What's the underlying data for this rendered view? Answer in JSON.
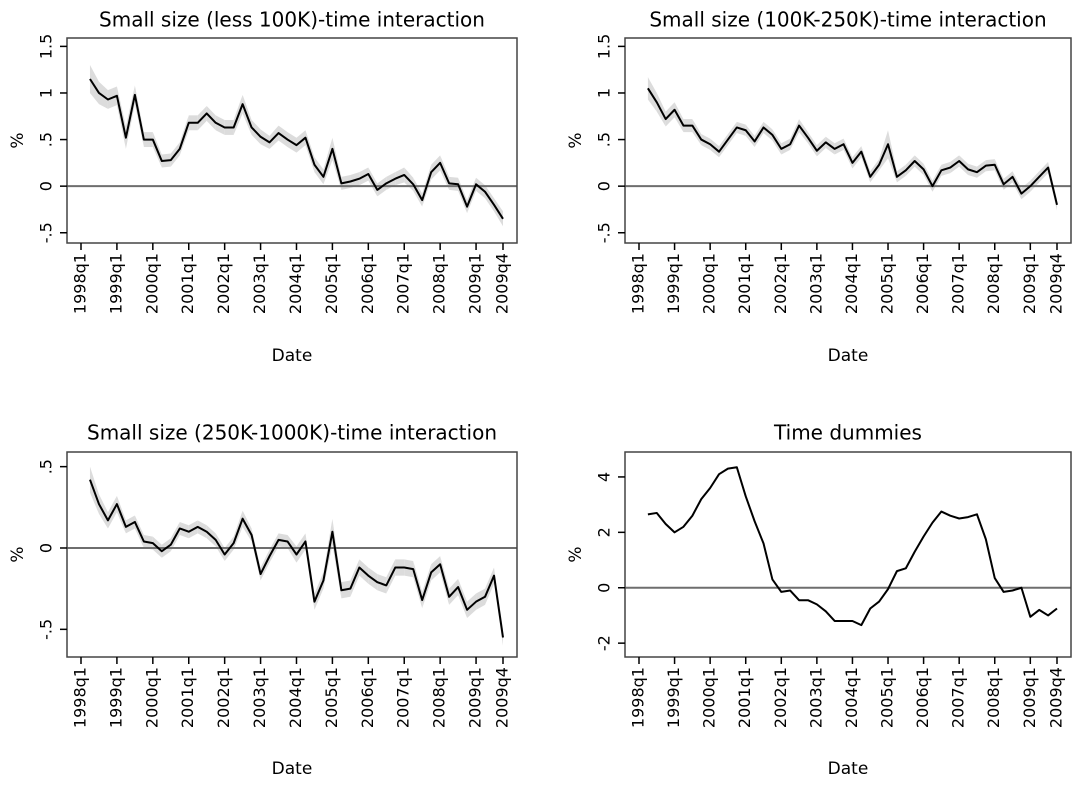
{
  "chart_data": [
    {
      "type": "line",
      "title": "Small size (less 100K)-time interaction",
      "xlabel": "Date",
      "ylabel": "%",
      "categories": [
        "1998q1",
        null,
        null,
        null,
        "1999q1",
        null,
        null,
        null,
        "2000q1",
        null,
        null,
        null,
        "2001q1",
        null,
        null,
        null,
        "2002q1",
        null,
        null,
        null,
        "2003q1",
        null,
        null,
        null,
        "2004q1",
        null,
        null,
        null,
        "2005q1",
        null,
        null,
        null,
        "2006q1",
        null,
        null,
        null,
        "2007q1",
        null,
        null,
        null,
        "2008q1",
        null,
        null,
        null,
        "2009q1",
        null,
        null,
        "2009q4"
      ],
      "series": [
        {
          "color": "#000000",
          "band_color": "#dcdcdc",
          "values": [
            null,
            1.15,
            1.0,
            0.93,
            0.97,
            0.52,
            0.98,
            0.5,
            0.5,
            0.27,
            0.28,
            0.4,
            0.68,
            0.68,
            0.78,
            0.68,
            0.63,
            0.63,
            0.88,
            0.63,
            0.53,
            0.47,
            0.57,
            0.5,
            0.44,
            0.52,
            0.23,
            0.1,
            0.4,
            0.03,
            0.05,
            0.08,
            0.13,
            -0.04,
            0.03,
            0.08,
            0.12,
            0.02,
            -0.15,
            0.15,
            0.25,
            0.03,
            0.02,
            -0.22,
            0.02,
            -0.06,
            -0.2,
            -0.35
          ],
          "errors": [
            null,
            0.15,
            0.12,
            0.1,
            0.1,
            0.12,
            0.1,
            0.08,
            0.08,
            0.07,
            0.07,
            0.07,
            0.08,
            0.08,
            0.08,
            0.08,
            0.08,
            0.08,
            0.1,
            0.08,
            0.08,
            0.07,
            0.08,
            0.08,
            0.08,
            0.08,
            0.08,
            0.08,
            0.12,
            0.07,
            0.07,
            0.07,
            0.07,
            0.07,
            0.07,
            0.07,
            0.08,
            0.07,
            0.07,
            0.08,
            0.08,
            0.07,
            0.07,
            0.07,
            0.07,
            0.07,
            0.07,
            0.08
          ]
        }
      ],
      "ylim": [
        -0.61,
        1.59
      ],
      "yticks": [
        {
          "value": -0.5,
          "label": "-.5"
        },
        0,
        {
          "value": 0.5,
          "label": ".5"
        },
        1,
        {
          "value": 1.5,
          "label": "1.5"
        }
      ],
      "zero_line": true
    },
    {
      "type": "line",
      "title": "Small size (100K-250K)-time interaction",
      "xlabel": "Date",
      "ylabel": "%",
      "categories": [
        "1998q1",
        null,
        null,
        null,
        "1999q1",
        null,
        null,
        null,
        "2000q1",
        null,
        null,
        null,
        "2001q1",
        null,
        null,
        null,
        "2002q1",
        null,
        null,
        null,
        "2003q1",
        null,
        null,
        null,
        "2004q1",
        null,
        null,
        null,
        "2005q1",
        null,
        null,
        null,
        "2006q1",
        null,
        null,
        null,
        "2007q1",
        null,
        null,
        null,
        "2008q1",
        null,
        null,
        null,
        "2009q1",
        null,
        null,
        "2009q4"
      ],
      "series": [
        {
          "color": "#000000",
          "band_color": "#dcdcdc",
          "values": [
            null,
            1.05,
            0.9,
            0.72,
            0.82,
            0.65,
            0.65,
            0.5,
            0.45,
            0.37,
            0.5,
            0.63,
            0.6,
            0.48,
            0.63,
            0.55,
            0.4,
            0.45,
            0.65,
            0.52,
            0.38,
            0.47,
            0.4,
            0.45,
            0.25,
            0.37,
            0.1,
            0.23,
            0.45,
            0.1,
            0.17,
            0.27,
            0.18,
            0.0,
            0.17,
            0.2,
            0.27,
            0.18,
            0.15,
            0.22,
            0.23,
            0.02,
            0.1,
            -0.08,
            0.0,
            0.1,
            0.2,
            -0.2
          ],
          "errors": [
            null,
            0.12,
            0.1,
            0.08,
            0.08,
            0.07,
            0.07,
            0.06,
            0.06,
            0.06,
            0.06,
            0.06,
            0.06,
            0.06,
            0.06,
            0.06,
            0.06,
            0.06,
            0.07,
            0.06,
            0.06,
            0.06,
            0.06,
            0.06,
            0.06,
            0.06,
            0.06,
            0.06,
            0.15,
            0.06,
            0.06,
            0.06,
            0.06,
            0.06,
            0.06,
            0.06,
            0.06,
            0.06,
            0.06,
            0.06,
            0.06,
            0.06,
            0.06,
            0.06,
            0.06,
            0.06,
            0.06,
            0.06
          ]
        }
      ],
      "ylim": [
        -0.61,
        1.59
      ],
      "yticks": [
        {
          "value": -0.5,
          "label": "-.5"
        },
        0,
        {
          "value": 0.5,
          "label": ".5"
        },
        1,
        {
          "value": 1.5,
          "label": "1.5"
        }
      ],
      "zero_line": true
    },
    {
      "type": "line",
      "title": "Small size (250K-1000K)-time interaction",
      "xlabel": "Date",
      "ylabel": "%",
      "categories": [
        "1998q1",
        null,
        null,
        null,
        "1999q1",
        null,
        null,
        null,
        "2000q1",
        null,
        null,
        null,
        "2001q1",
        null,
        null,
        null,
        "2002q1",
        null,
        null,
        null,
        "2003q1",
        null,
        null,
        null,
        "2004q1",
        null,
        null,
        null,
        "2005q1",
        null,
        null,
        null,
        "2006q1",
        null,
        null,
        null,
        "2007q1",
        null,
        null,
        null,
        "2008q1",
        null,
        null,
        null,
        "2009q1",
        null,
        null,
        "2009q4"
      ],
      "series": [
        {
          "color": "#000000",
          "band_color": "#dcdcdc",
          "values": [
            null,
            0.42,
            0.27,
            0.17,
            0.27,
            0.13,
            0.16,
            0.04,
            0.03,
            -0.02,
            0.02,
            0.12,
            0.1,
            0.13,
            0.1,
            0.05,
            -0.04,
            0.03,
            0.18,
            0.08,
            -0.16,
            -0.05,
            0.05,
            0.04,
            -0.04,
            0.04,
            -0.33,
            -0.2,
            0.1,
            -0.26,
            -0.25,
            -0.12,
            -0.17,
            -0.21,
            -0.23,
            -0.12,
            -0.12,
            -0.13,
            -0.32,
            -0.15,
            -0.1,
            -0.3,
            -0.24,
            -0.38,
            -0.33,
            -0.3,
            -0.17,
            -0.55
          ],
          "errors": [
            null,
            0.08,
            0.06,
            0.05,
            0.05,
            0.04,
            0.04,
            0.04,
            0.04,
            0.04,
            0.04,
            0.04,
            0.04,
            0.04,
            0.04,
            0.04,
            0.04,
            0.04,
            0.05,
            0.04,
            0.04,
            0.04,
            0.04,
            0.04,
            0.05,
            0.05,
            0.05,
            0.05,
            0.08,
            0.05,
            0.05,
            0.05,
            0.05,
            0.05,
            0.05,
            0.05,
            0.05,
            0.05,
            0.05,
            0.05,
            0.05,
            0.05,
            0.05,
            0.05,
            0.05,
            0.05,
            0.05,
            0.05
          ]
        }
      ],
      "ylim": [
        -0.67,
        0.59
      ],
      "yticks": [
        {
          "value": -0.5,
          "label": "-.5"
        },
        0,
        {
          "value": 0.5,
          "label": ".5"
        }
      ],
      "zero_line": true
    },
    {
      "type": "line",
      "title": "Time dummies",
      "xlabel": "Date",
      "ylabel": "%",
      "categories": [
        "1998q1",
        null,
        null,
        null,
        "1999q1",
        null,
        null,
        null,
        "2000q1",
        null,
        null,
        null,
        "2001q1",
        null,
        null,
        null,
        "2002q1",
        null,
        null,
        null,
        "2003q1",
        null,
        null,
        null,
        "2004q1",
        null,
        null,
        null,
        "2005q1",
        null,
        null,
        null,
        "2006q1",
        null,
        null,
        null,
        "2007q1",
        null,
        null,
        null,
        "2008q1",
        null,
        null,
        null,
        "2009q1",
        null,
        null,
        "2009q4"
      ],
      "series": [
        {
          "color": "#000000",
          "values": [
            null,
            2.65,
            2.7,
            2.3,
            2.0,
            2.2,
            2.6,
            3.2,
            3.6,
            4.1,
            4.3,
            4.35,
            3.3,
            2.4,
            1.6,
            0.3,
            -0.15,
            -0.1,
            -0.45,
            -0.45,
            -0.6,
            -0.85,
            -1.2,
            -1.2,
            -1.2,
            -1.35,
            -0.75,
            -0.5,
            -0.05,
            0.6,
            0.7,
            1.3,
            1.85,
            2.35,
            2.75,
            2.6,
            2.5,
            2.55,
            2.65,
            1.75,
            0.35,
            -0.15,
            -0.1,
            0.0,
            -1.05,
            -0.8,
            -1.0,
            -0.75
          ]
        }
      ],
      "ylim": [
        -2.5,
        4.9
      ],
      "yticks": [
        -2,
        0,
        2,
        4
      ],
      "zero_line": true
    }
  ]
}
